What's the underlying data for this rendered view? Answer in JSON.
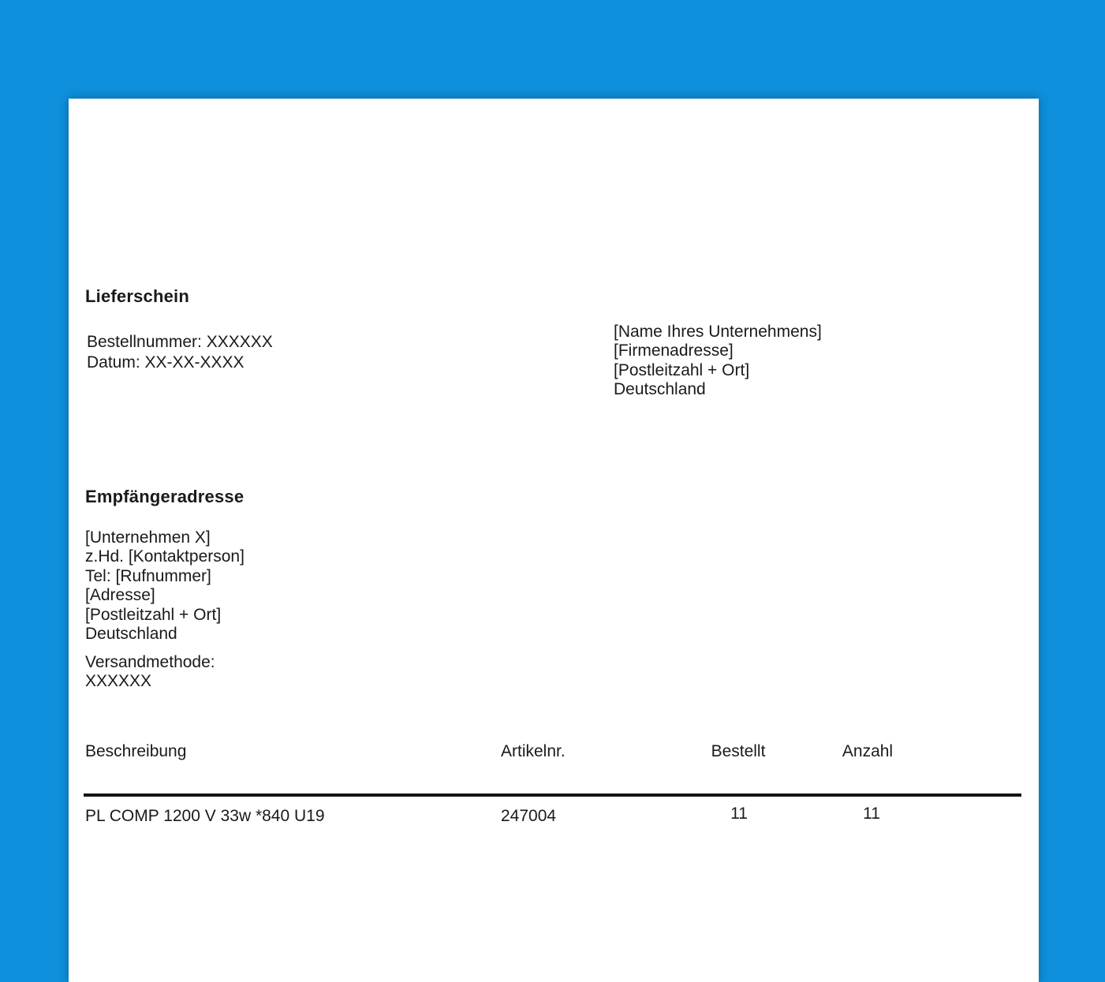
{
  "colors": {
    "background": "#0e90dc",
    "paper": "#ffffff",
    "text": "#1a1a1a",
    "table_rule": "#141414"
  },
  "page": {
    "title": "Lieferschein",
    "order_info": {
      "order_number_line": "Bestellnummer: XXXXXX",
      "date_line": "Datum: XX-XX-XXXX"
    },
    "company_address": {
      "lines": [
        "[Name Ihres Unternehmens]",
        "[Firmenadresse]",
        "[Postleitzahl + Ort]",
        "Deutschland"
      ]
    },
    "recipient": {
      "heading": "Empfängeradresse",
      "lines": [
        "[Unternehmen X]",
        "z.Hd. [Kontaktperson]",
        "Tel: [Rufnummer]",
        "[Adresse]",
        "[Postleitzahl + Ort]",
        "Deutschland"
      ]
    },
    "shipping": {
      "label": "Versandmethode:",
      "value": "XXXXXX"
    },
    "table": {
      "headers": {
        "description": "Beschreibung",
        "item_number": "Artikelnr.",
        "ordered": "Bestellt",
        "quantity": "Anzahl"
      },
      "rows": [
        {
          "description": "PL COMP 1200 V 33w *840 U19",
          "item_number": "247004",
          "ordered": "11",
          "quantity": "11"
        }
      ]
    }
  }
}
